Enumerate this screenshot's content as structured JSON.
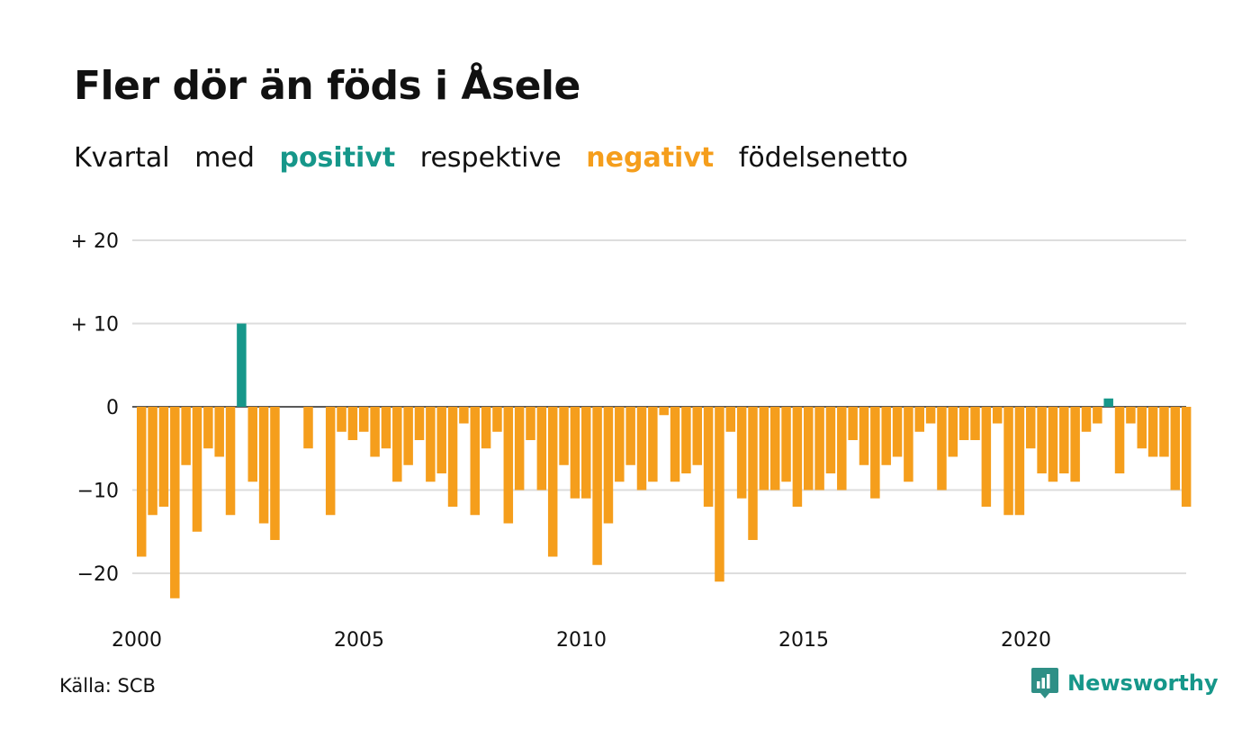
{
  "title": "Fler dör än föds i Åsele",
  "subtitle": {
    "part1": "Kvartal",
    "part2": "med",
    "positive_word": "positivt",
    "part3": "respektive",
    "negative_word": "negativt",
    "part4": "födelsenetto"
  },
  "colors": {
    "positive": "#16978a",
    "negative": "#f59e1c",
    "grid": "#dddddd",
    "text": "#111111"
  },
  "source": "Källa: SCB",
  "brand": {
    "name": "Newsworthy",
    "icon": "newsworthy-logo-icon"
  },
  "chart_data": {
    "type": "bar",
    "title": "Fler dör än föds i Åsele",
    "xlabel": "",
    "ylabel": "",
    "ylim": [
      -25,
      22
    ],
    "y_ticks": [
      20,
      10,
      0,
      -10,
      -20
    ],
    "y_tick_labels": [
      "+ 20",
      "+ 10",
      "0",
      "−10",
      "−20"
    ],
    "x_ticks": [
      "2000",
      "2005",
      "2010",
      "2015",
      "2020"
    ],
    "grid": true,
    "start": "2000 Q1",
    "values": [
      -18,
      -13,
      -12,
      -23,
      -7,
      -15,
      -5,
      -6,
      -13,
      10,
      -9,
      -14,
      -16,
      0,
      0,
      -5,
      0,
      -13,
      -3,
      -4,
      -3,
      -6,
      -5,
      -9,
      -7,
      -4,
      -9,
      -8,
      -12,
      -2,
      -13,
      -5,
      -3,
      -14,
      -10,
      -4,
      -10,
      -18,
      -7,
      -11,
      -11,
      -19,
      -14,
      -9,
      -7,
      -10,
      -9,
      -1,
      -9,
      -8,
      -7,
      -12,
      -21,
      -3,
      -11,
      -16,
      -10,
      -10,
      -9,
      -12,
      -10,
      -10,
      -8,
      -10,
      -4,
      -7,
      -11,
      -7,
      -6,
      -9,
      -3,
      -2,
      -10,
      -6,
      -4,
      -4,
      -12,
      -2,
      -13,
      -13,
      -5,
      -8,
      -9,
      -8,
      -9,
      -3,
      -2,
      1,
      -8,
      -2,
      -5,
      -6,
      -6,
      -10,
      -12
    ]
  }
}
